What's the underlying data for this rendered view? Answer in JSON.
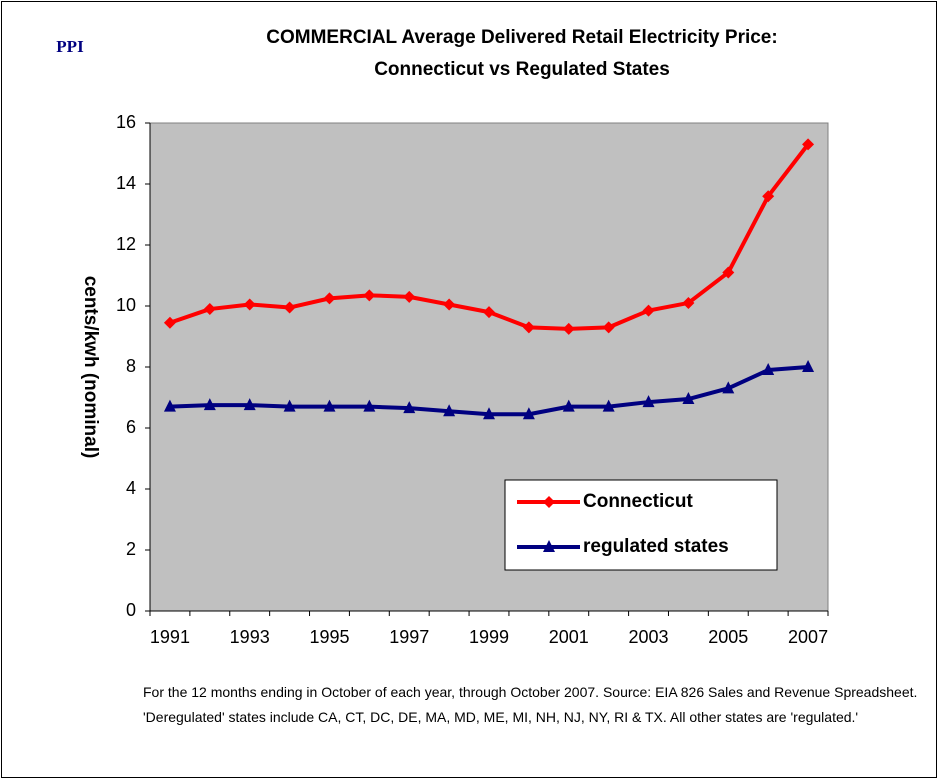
{
  "chart_data": {
    "type": "line",
    "brand": "PPI",
    "title": "COMMERCIAL Average Delivered Retail Electricity Price:",
    "subtitle": "Connecticut vs Regulated States",
    "y_label": "cents/kwh (nominal)",
    "note": "For the 12 months ending in October of each year, through October 2007.  Source: EIA 826 Sales and Revenue Spreadsheet.  'Deregulated' states include CA, CT, DC, DE, MA, MD, ME, MI, NH, NJ, NY, RI & TX.  All other states are 'regulated.'",
    "categories": [
      "1991",
      null,
      "1993",
      null,
      "1995",
      null,
      "1997",
      null,
      "1999",
      null,
      "2001",
      null,
      "2003",
      null,
      "2005",
      null,
      "2007"
    ],
    "series": [
      {
        "name": "Connecticut",
        "color": "#ff0000",
        "marker": "diamond",
        "values": [
          9.45,
          9.9,
          10.05,
          9.95,
          10.25,
          10.35,
          10.3,
          10.05,
          9.8,
          9.3,
          9.25,
          9.3,
          9.85,
          10.1,
          11.1,
          13.6,
          15.3
        ]
      },
      {
        "name": "regulated states",
        "color": "#000080",
        "marker": "triangle",
        "values": [
          6.7,
          6.75,
          6.75,
          6.7,
          6.7,
          6.7,
          6.65,
          6.55,
          6.45,
          6.45,
          6.7,
          6.7,
          6.85,
          6.95,
          7.3,
          7.9,
          8.0
        ]
      }
    ],
    "ylim": [
      0,
      16
    ],
    "yticks": [
      0,
      2,
      4,
      6,
      8,
      10,
      12,
      14,
      16
    ],
    "plot_background": "#c0c0c0",
    "legend": "lower right"
  }
}
